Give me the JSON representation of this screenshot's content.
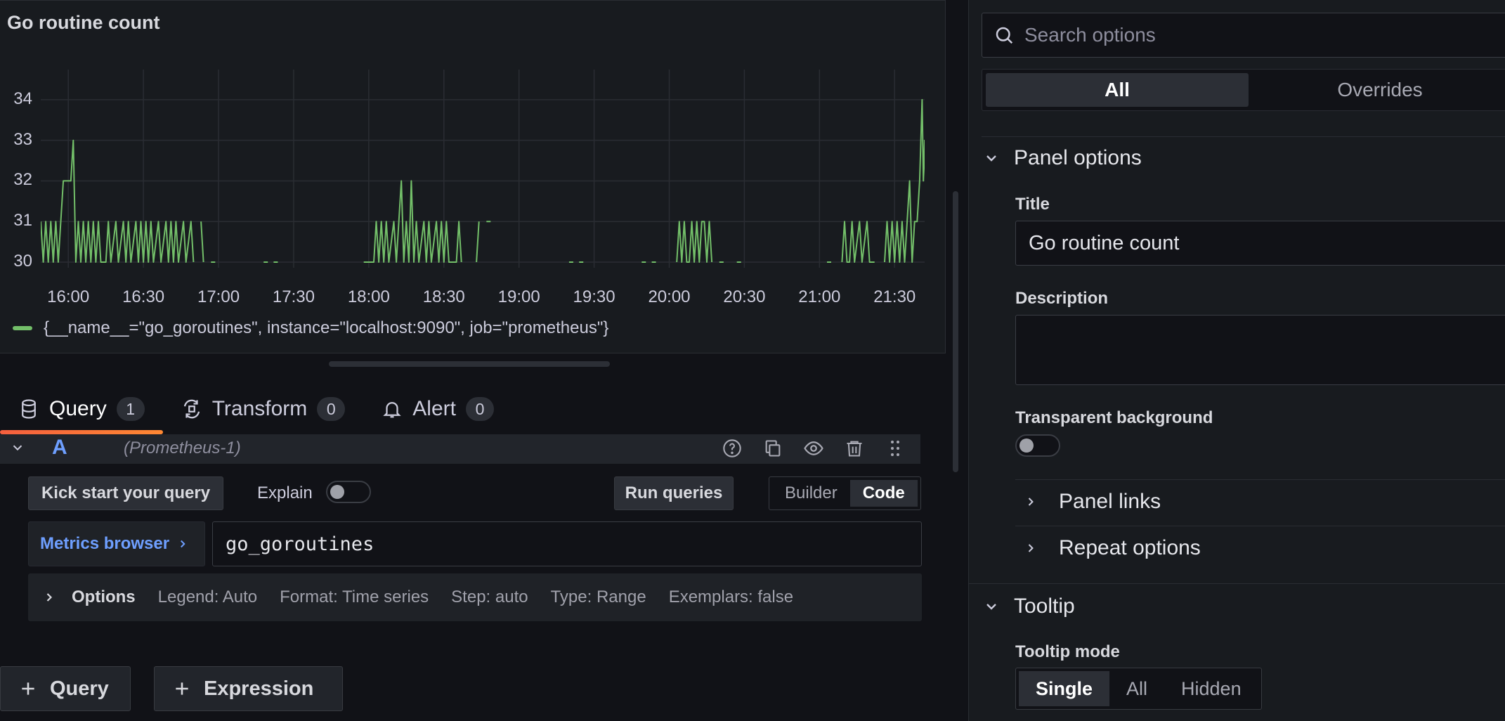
{
  "panel": {
    "title": "Go routine count",
    "legend_label": "{__name__=\"go_goroutines\", instance=\"localhost:9090\", job=\"prometheus\"}",
    "series_color": "#73bf69"
  },
  "chart_data": {
    "type": "line",
    "title": "Go routine count",
    "xlabel": "",
    "ylabel": "",
    "y_ticks": [
      "30",
      "31",
      "32",
      "33",
      "34"
    ],
    "x_ticks": [
      "16:00",
      "16:30",
      "17:00",
      "17:30",
      "18:00",
      "18:30",
      "19:00",
      "19:30",
      "20:00",
      "20:30",
      "21:00",
      "21:30"
    ],
    "ylim": [
      30,
      34.5
    ],
    "xlim": [
      "15:49",
      "21:42"
    ],
    "grid": true,
    "legend": "bottom-left",
    "series": [
      {
        "name": "{__name__=\"go_goroutines\", instance=\"localhost:9090\", job=\"prometheus\"}",
        "color": "#73bf69",
        "points": [
          [
            "15:49",
            31
          ],
          [
            "15:50",
            30
          ],
          [
            "15:51",
            31
          ],
          [
            "15:52",
            30
          ],
          [
            "15:53",
            31
          ],
          [
            "15:54",
            30
          ],
          [
            "15:55",
            31
          ],
          [
            "15:56",
            30
          ],
          [
            "15:57",
            31
          ],
          [
            "15:58",
            32
          ],
          [
            "15:59",
            32
          ],
          [
            "16:00",
            32
          ],
          [
            "16:01",
            32
          ],
          [
            "16:02",
            33
          ],
          [
            "16:03",
            30
          ],
          [
            "16:04",
            31
          ],
          [
            "16:05",
            30
          ],
          [
            "16:06",
            31
          ],
          [
            "16:07",
            30
          ],
          [
            "16:08",
            31
          ],
          [
            "16:09",
            30
          ],
          [
            "16:10",
            31
          ],
          [
            "16:11",
            30
          ],
          [
            "16:12",
            31
          ],
          [
            "16:13",
            30
          ],
          [
            "16:14",
            30
          ],
          [
            "16:15",
            30
          ],
          [
            "16:16",
            31
          ],
          [
            "16:17",
            30
          ],
          [
            "16:19",
            31
          ],
          [
            "16:20",
            30
          ],
          [
            "16:22",
            31
          ],
          [
            "16:23",
            30
          ],
          [
            "16:24",
            31
          ],
          [
            "16:25",
            30
          ],
          [
            "16:27",
            31
          ],
          [
            "16:28",
            30
          ],
          [
            "16:29",
            31
          ],
          [
            "16:30",
            30
          ],
          [
            "16:31",
            31
          ],
          [
            "16:32",
            30
          ],
          [
            "16:33",
            31
          ],
          [
            "16:34",
            30
          ],
          [
            "16:36",
            31
          ],
          [
            "16:37",
            30
          ],
          [
            "16:39",
            31
          ],
          [
            "16:40",
            30
          ],
          [
            "16:41",
            31
          ],
          [
            "16:42",
            30
          ],
          [
            "16:43",
            31
          ],
          [
            "16:44",
            30
          ],
          [
            "16:46",
            31
          ],
          [
            "16:47",
            30
          ],
          [
            "16:49",
            31
          ],
          [
            "16:50",
            30
          ],
          [
            "16:53",
            31
          ],
          [
            "16:54",
            30
          ],
          [
            "16:57",
            30
          ],
          [
            "17:18",
            30
          ],
          [
            "17:22",
            30
          ],
          [
            "17:58",
            30
          ],
          [
            "18:00",
            30
          ],
          [
            "18:02",
            30
          ],
          [
            "18:03",
            31
          ],
          [
            "18:04",
            30
          ],
          [
            "18:05",
            31
          ],
          [
            "18:06",
            30
          ],
          [
            "18:07",
            31
          ],
          [
            "18:08",
            30
          ],
          [
            "18:10",
            31
          ],
          [
            "18:11",
            30
          ],
          [
            "18:13",
            32
          ],
          [
            "18:14",
            30
          ],
          [
            "18:15",
            31
          ],
          [
            "18:16",
            30
          ],
          [
            "18:17",
            32
          ],
          [
            "18:18",
            30
          ],
          [
            "18:19",
            31
          ],
          [
            "18:20",
            30
          ],
          [
            "18:22",
            31
          ],
          [
            "18:23",
            30
          ],
          [
            "18:24",
            31
          ],
          [
            "18:25",
            30
          ],
          [
            "18:27",
            31
          ],
          [
            "18:28",
            30
          ],
          [
            "18:29",
            31
          ],
          [
            "18:30",
            30
          ],
          [
            "18:31",
            31
          ],
          [
            "18:32",
            30
          ],
          [
            "18:33",
            30
          ],
          [
            "18:35",
            30
          ],
          [
            "18:36",
            31
          ],
          [
            "18:37",
            30
          ],
          [
            "18:43",
            30
          ],
          [
            "18:44",
            31
          ],
          [
            "18:47",
            31
          ],
          [
            "19:20",
            30
          ],
          [
            "19:24",
            30
          ],
          [
            "19:49",
            30
          ],
          [
            "19:53",
            30
          ],
          [
            "20:03",
            30
          ],
          [
            "20:04",
            31
          ],
          [
            "20:05",
            30
          ],
          [
            "20:06",
            31
          ],
          [
            "20:07",
            30
          ],
          [
            "20:08",
            30
          ],
          [
            "20:09",
            31
          ],
          [
            "20:10",
            30
          ],
          [
            "20:11",
            31
          ],
          [
            "20:12",
            30
          ],
          [
            "20:13",
            31
          ],
          [
            "20:14",
            31
          ],
          [
            "20:15",
            30
          ],
          [
            "20:16",
            31
          ],
          [
            "20:17",
            30
          ],
          [
            "20:20",
            30
          ],
          [
            "20:27",
            30
          ],
          [
            "21:03",
            30
          ],
          [
            "21:09",
            30
          ],
          [
            "21:10",
            31
          ],
          [
            "21:11",
            30
          ],
          [
            "21:12",
            30
          ],
          [
            "21:13",
            31
          ],
          [
            "21:14",
            30
          ],
          [
            "21:16",
            31
          ],
          [
            "21:17",
            30
          ],
          [
            "21:19",
            31
          ],
          [
            "21:20",
            30
          ],
          [
            "21:22",
            30
          ],
          [
            "21:26",
            30
          ],
          [
            "21:27",
            31
          ],
          [
            "21:28",
            30
          ],
          [
            "21:29",
            31
          ],
          [
            "21:30",
            30
          ],
          [
            "21:31",
            31
          ],
          [
            "21:32",
            30
          ],
          [
            "21:33",
            31
          ],
          [
            "21:34",
            30
          ],
          [
            "21:35",
            31
          ],
          [
            "21:36",
            32
          ],
          [
            "21:37",
            30
          ],
          [
            "21:38",
            31
          ],
          [
            "21:39",
            31
          ],
          [
            "21:40",
            32
          ],
          [
            "21:41",
            34
          ],
          [
            "21:41.5",
            32
          ],
          [
            "21:42",
            33
          ],
          [
            "21:42.3",
            32
          ]
        ]
      }
    ]
  },
  "tabs": [
    {
      "label": "Query",
      "count": "1"
    },
    {
      "label": "Transform",
      "count": "0"
    },
    {
      "label": "Alert",
      "count": "0"
    }
  ],
  "query": {
    "ref_id": "A",
    "datasource": "(Prometheus-1)",
    "kickstart_label": "Kick start your query",
    "explain_label": "Explain",
    "run_label": "Run queries",
    "mode_builder": "Builder",
    "mode_code": "Code",
    "metrics_browser_label": "Metrics browser",
    "expression": "go_goroutines",
    "options_title": "Options",
    "options": [
      "Legend: Auto",
      "Format: Time series",
      "Step: auto",
      "Type: Range",
      "Exemplars: false"
    ],
    "add_query_label": "Query",
    "add_expression_label": "Expression"
  },
  "options_pane": {
    "search_placeholder": "Search options",
    "tab_all": "All",
    "tab_overrides": "Overrides",
    "panel_options_label": "Panel options",
    "title_label": "Title",
    "title_value": "Go routine count",
    "description_label": "Description",
    "description_value": "",
    "transparent_label": "Transparent background",
    "panel_links_label": "Panel links",
    "repeat_options_label": "Repeat options",
    "tooltip_label": "Tooltip",
    "tooltip_mode_label": "Tooltip mode",
    "tooltip_modes": [
      "Single",
      "All",
      "Hidden"
    ],
    "tooltip_mode_selected": "Single"
  }
}
